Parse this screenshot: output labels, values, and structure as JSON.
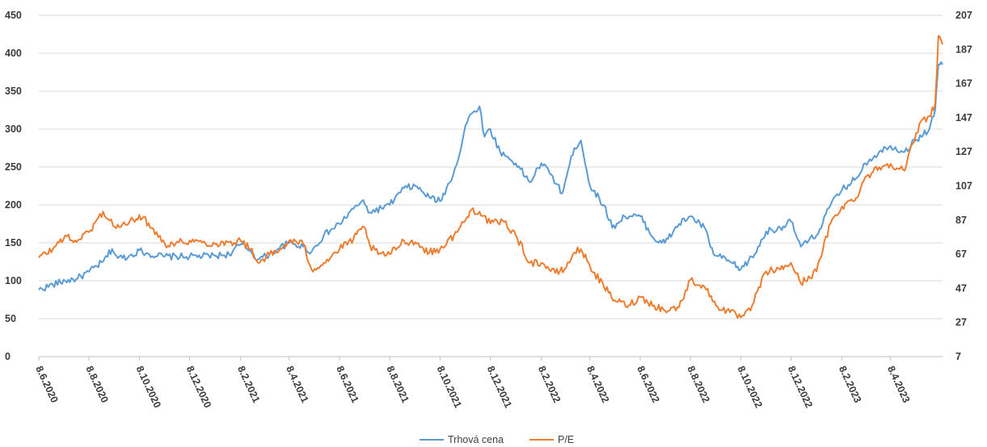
{
  "chart_data": {
    "type": "line",
    "title": "",
    "xlabel": "",
    "ylabel": "",
    "x_ticks": [
      "8.6.2020",
      "8.8.2020",
      "8.10.2020",
      "8.12.2020",
      "8.2.2021",
      "8.4.2021",
      "8.6.2021",
      "8.8.2021",
      "8.10.2021",
      "8.12.2021",
      "8.2.2022",
      "8.4.2022",
      "8.6.2022",
      "8.8.2022",
      "8.10.2022",
      "8.12.2022",
      "8.2.2023",
      "8.4.2023"
    ],
    "x_range": [
      "2020-06-08",
      "2023-06-10"
    ],
    "y_left": {
      "ticks": [
        0,
        50,
        100,
        150,
        200,
        250,
        300,
        350,
        400,
        450
      ],
      "ylim": [
        0,
        450
      ]
    },
    "y_right": {
      "ticks": [
        7,
        27,
        47,
        67,
        87,
        107,
        127,
        147,
        167,
        187,
        207
      ],
      "ylim": [
        7,
        207
      ]
    },
    "grid": true,
    "legend_position": "bottom",
    "series": [
      {
        "name": "Trhová cena",
        "axis": "left",
        "color": "#5b9bd5",
        "points": [
          [
            "2020-06-08",
            88
          ],
          [
            "2020-06-25",
            95
          ],
          [
            "2020-07-10",
            100
          ],
          [
            "2020-07-25",
            103
          ],
          [
            "2020-08-08",
            112
          ],
          [
            "2020-08-25",
            125
          ],
          [
            "2020-09-05",
            142
          ],
          [
            "2020-09-12",
            130
          ],
          [
            "2020-09-25",
            132
          ],
          [
            "2020-10-08",
            140
          ],
          [
            "2020-10-20",
            135
          ],
          [
            "2020-11-08",
            132
          ],
          [
            "2020-12-08",
            132
          ],
          [
            "2021-01-08",
            133
          ],
          [
            "2021-01-25",
            135
          ],
          [
            "2021-02-08",
            148
          ],
          [
            "2021-02-20",
            140
          ],
          [
            "2021-03-01",
            128
          ],
          [
            "2021-03-15",
            135
          ],
          [
            "2021-03-25",
            142
          ],
          [
            "2021-04-08",
            150
          ],
          [
            "2021-04-25",
            145
          ],
          [
            "2021-05-05",
            138
          ],
          [
            "2021-05-20",
            160
          ],
          [
            "2021-06-08",
            175
          ],
          [
            "2021-06-25",
            195
          ],
          [
            "2021-07-05",
            205
          ],
          [
            "2021-07-15",
            190
          ],
          [
            "2021-08-08",
            200
          ],
          [
            "2021-08-25",
            222
          ],
          [
            "2021-09-08",
            225
          ],
          [
            "2021-09-25",
            210
          ],
          [
            "2021-10-08",
            205
          ],
          [
            "2021-10-20",
            230
          ],
          [
            "2021-11-01",
            268
          ],
          [
            "2021-11-08",
            305
          ],
          [
            "2021-11-15",
            320
          ],
          [
            "2021-11-25",
            330
          ],
          [
            "2021-12-01",
            290
          ],
          [
            "2021-12-08",
            300
          ],
          [
            "2021-12-20",
            270
          ],
          [
            "2022-01-08",
            255
          ],
          [
            "2022-01-25",
            230
          ],
          [
            "2022-02-08",
            255
          ],
          [
            "2022-02-20",
            240
          ],
          [
            "2022-03-05",
            215
          ],
          [
            "2022-03-20",
            275
          ],
          [
            "2022-03-28",
            285
          ],
          [
            "2022-04-08",
            225
          ],
          [
            "2022-04-25",
            200
          ],
          [
            "2022-05-05",
            170
          ],
          [
            "2022-05-20",
            185
          ],
          [
            "2022-06-08",
            185
          ],
          [
            "2022-06-25",
            155
          ],
          [
            "2022-07-08",
            150
          ],
          [
            "2022-07-25",
            175
          ],
          [
            "2022-08-08",
            185
          ],
          [
            "2022-08-25",
            170
          ],
          [
            "2022-09-05",
            135
          ],
          [
            "2022-09-25",
            125
          ],
          [
            "2022-10-08",
            115
          ],
          [
            "2022-10-25",
            135
          ],
          [
            "2022-11-08",
            165
          ],
          [
            "2022-11-25",
            170
          ],
          [
            "2022-12-08",
            178
          ],
          [
            "2022-12-20",
            145
          ],
          [
            "2023-01-08",
            160
          ],
          [
            "2023-01-25",
            200
          ],
          [
            "2023-02-08",
            220
          ],
          [
            "2023-02-25",
            235
          ],
          [
            "2023-03-08",
            255
          ],
          [
            "2023-03-25",
            270
          ],
          [
            "2023-04-08",
            278
          ],
          [
            "2023-04-25",
            270
          ],
          [
            "2023-05-08",
            285
          ],
          [
            "2023-05-25",
            300
          ],
          [
            "2023-06-01",
            325
          ],
          [
            "2023-06-05",
            385
          ],
          [
            "2023-06-10",
            385
          ]
        ]
      },
      {
        "name": "P/E",
        "axis": "right",
        "color": "#ed7d31",
        "points": [
          [
            "2020-06-08",
            65
          ],
          [
            "2020-06-25",
            70
          ],
          [
            "2020-07-10",
            78
          ],
          [
            "2020-07-20",
            74
          ],
          [
            "2020-08-08",
            80
          ],
          [
            "2020-08-25",
            92
          ],
          [
            "2020-09-08",
            83
          ],
          [
            "2020-09-25",
            85
          ],
          [
            "2020-10-08",
            90
          ],
          [
            "2020-10-25",
            82
          ],
          [
            "2020-11-08",
            73
          ],
          [
            "2020-11-25",
            74
          ],
          [
            "2020-12-08",
            75
          ],
          [
            "2021-01-08",
            73
          ],
          [
            "2021-01-25",
            74
          ],
          [
            "2021-02-08",
            75
          ],
          [
            "2021-02-20",
            70
          ],
          [
            "2021-03-01",
            62
          ],
          [
            "2021-03-15",
            67
          ],
          [
            "2021-03-25",
            68
          ],
          [
            "2021-04-08",
            75
          ],
          [
            "2021-04-25",
            73
          ],
          [
            "2021-05-05",
            58
          ],
          [
            "2021-05-20",
            62
          ],
          [
            "2021-06-08",
            70
          ],
          [
            "2021-06-25",
            76
          ],
          [
            "2021-07-08",
            83
          ],
          [
            "2021-07-15",
            72
          ],
          [
            "2021-07-25",
            67
          ],
          [
            "2021-08-08",
            67
          ],
          [
            "2021-08-25",
            75
          ],
          [
            "2021-09-08",
            74
          ],
          [
            "2021-09-25",
            68
          ],
          [
            "2021-10-08",
            70
          ],
          [
            "2021-10-25",
            78
          ],
          [
            "2021-11-08",
            87
          ],
          [
            "2021-11-15",
            93
          ],
          [
            "2021-11-25",
            92
          ],
          [
            "2021-12-08",
            85
          ],
          [
            "2021-12-25",
            86
          ],
          [
            "2022-01-08",
            78
          ],
          [
            "2022-01-25",
            62
          ],
          [
            "2022-02-08",
            62
          ],
          [
            "2022-02-25",
            56
          ],
          [
            "2022-03-08",
            58
          ],
          [
            "2022-03-20",
            68
          ],
          [
            "2022-03-28",
            70
          ],
          [
            "2022-04-08",
            60
          ],
          [
            "2022-04-25",
            48
          ],
          [
            "2022-05-08",
            40
          ],
          [
            "2022-05-25",
            37
          ],
          [
            "2022-06-08",
            42
          ],
          [
            "2022-06-25",
            37
          ],
          [
            "2022-07-08",
            34
          ],
          [
            "2022-07-25",
            36
          ],
          [
            "2022-08-08",
            52
          ],
          [
            "2022-08-25",
            48
          ],
          [
            "2022-09-08",
            37
          ],
          [
            "2022-09-25",
            33
          ],
          [
            "2022-10-08",
            30
          ],
          [
            "2022-10-20",
            34
          ],
          [
            "2022-10-28",
            45
          ],
          [
            "2022-11-08",
            57
          ],
          [
            "2022-11-25",
            58
          ],
          [
            "2022-12-08",
            62
          ],
          [
            "2022-12-20",
            50
          ],
          [
            "2023-01-08",
            57
          ],
          [
            "2023-01-25",
            85
          ],
          [
            "2023-02-08",
            95
          ],
          [
            "2023-02-25",
            100
          ],
          [
            "2023-03-08",
            112
          ],
          [
            "2023-03-25",
            118
          ],
          [
            "2023-04-08",
            120
          ],
          [
            "2023-04-25",
            116
          ],
          [
            "2023-05-05",
            132
          ],
          [
            "2023-05-15",
            145
          ],
          [
            "2023-05-25",
            148
          ],
          [
            "2023-06-01",
            155
          ],
          [
            "2023-06-05",
            195
          ],
          [
            "2023-06-10",
            190
          ]
        ]
      }
    ]
  }
}
